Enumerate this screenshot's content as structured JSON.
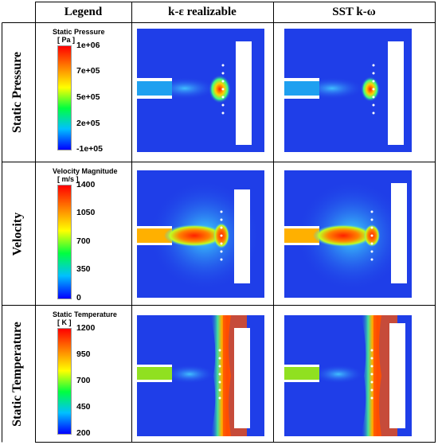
{
  "headers": {
    "legend": "Legend",
    "model_1": "k-ε realizable",
    "model_2": "SST k-ω"
  },
  "rows": [
    {
      "label": "Static Pressure",
      "legend_title": "Static Pressure",
      "legend_unit": "[ Pa ]",
      "ticks": [
        "1e+06",
        "7e+05",
        "5e+05",
        "2e+05",
        "-1e+05"
      ],
      "gradient": [
        "#ff0000",
        "#ff8000",
        "#ffff00",
        "#00ff40",
        "#00c0ff",
        "#0000ff"
      ]
    },
    {
      "label": "Velocity",
      "legend_title": "Velocity Magnitude",
      "legend_unit": "[ m/s ]",
      "ticks": [
        "1400",
        "1050",
        "700",
        "350",
        "0"
      ],
      "gradient": [
        "#ff0000",
        "#ff8000",
        "#ffff00",
        "#00ff40",
        "#00c0ff",
        "#0000ff"
      ]
    },
    {
      "label": "Static Temperature",
      "legend_title": "Static Temperature",
      "legend_unit": "[ K ]",
      "ticks": [
        "1200",
        "950",
        "700",
        "450",
        "200"
      ],
      "gradient": [
        "#ff0000",
        "#ff8000",
        "#ffff00",
        "#00ff40",
        "#00c0ff",
        "#0000ff"
      ]
    }
  ],
  "colors": {
    "background_field": "#1f3ee8",
    "line": "#000000"
  }
}
